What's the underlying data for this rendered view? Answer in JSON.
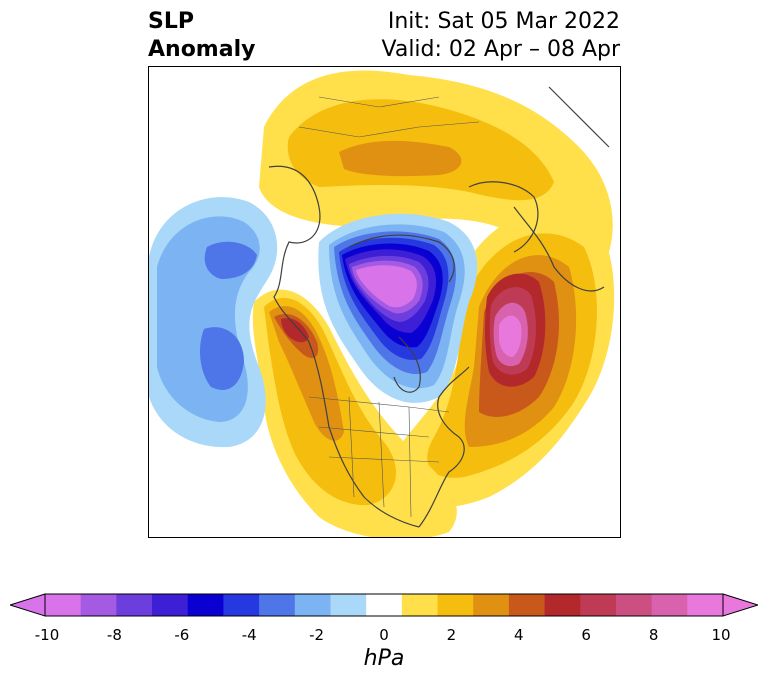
{
  "title": {
    "left_line1": "SLP",
    "left_line2": "Anomaly",
    "right_line1": "Init: Sat 05 Mar 2022",
    "right_line2": "Valid: 02 Apr – 08 Apr"
  },
  "colorbar": {
    "unit": "hPa",
    "ticks": [
      "-10",
      "-8",
      "-6",
      "-4",
      "-2",
      "0",
      "2",
      "4",
      "6",
      "8",
      "10"
    ],
    "levels": [
      {
        "color": "#d873ea"
      },
      {
        "color": "#a45ae2"
      },
      {
        "color": "#6d3ede"
      },
      {
        "color": "#3d1fd5"
      },
      {
        "color": "#0a00d2"
      },
      {
        "color": "#2639e1"
      },
      {
        "color": "#4f76e8"
      },
      {
        "color": "#7cb4f3"
      },
      {
        "color": "#aad8f8"
      },
      {
        "color": "#ffffff"
      },
      {
        "color": "#ffe04a"
      },
      {
        "color": "#f5bd0e"
      },
      {
        "color": "#e09112"
      },
      {
        "color": "#c9591b"
      },
      {
        "color": "#b3282a"
      },
      {
        "color": "#bf3a55"
      },
      {
        "color": "#cc4f82"
      },
      {
        "color": "#d862ad"
      },
      {
        "color": "#e978dc"
      }
    ],
    "extend_low_color": "#d873ea",
    "extend_high_color": "#e978dc"
  },
  "map": {
    "region": "North America / Arctic polar stereographic",
    "features": [
      {
        "name": "aleutian-low-anomaly",
        "sign": "negative",
        "peak": -5
      },
      {
        "name": "arctic-low-anomaly",
        "sign": "negative",
        "peak": -10
      },
      {
        "name": "greenland-atlantic-high-anomaly",
        "sign": "positive",
        "peak": 10
      },
      {
        "name": "western-north-america-high-anomaly",
        "sign": "positive",
        "peak": 6
      },
      {
        "name": "siberia-high-anomaly",
        "sign": "positive",
        "peak": 3
      }
    ]
  }
}
